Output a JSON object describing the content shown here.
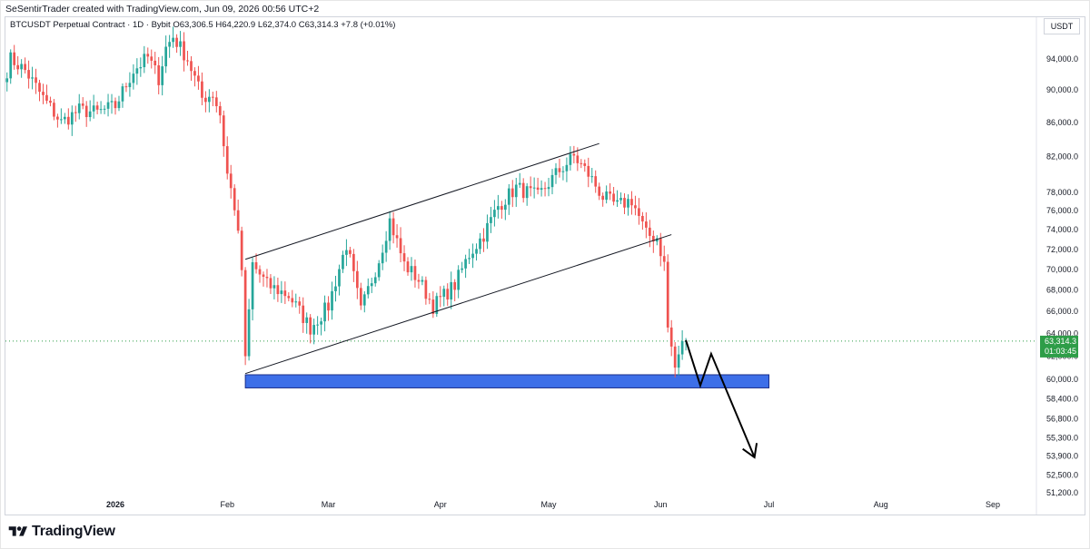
{
  "credit": "SeSentirTrader created with TradingView.com, Jun 09, 2026 00:56 UTC+2",
  "legend": {
    "symbol": "BTCUSDT Perpetual Contract · 1D · Bybit",
    "open": "O63,306.5",
    "high": "H64,220.9",
    "low": "L62,374.0",
    "close": "C63,314.3",
    "change": "+7.8 (+0.01%)"
  },
  "currency": "USDT",
  "last_price": {
    "label": "63,314.3",
    "countdown": "01:03:45",
    "value": 63314.3
  },
  "brand": "TradingView",
  "colors": {
    "up": "#26a69a",
    "down": "#ef5350",
    "zone": "#3d6fe8",
    "price_label": "#2e9d48",
    "projection": "#000000"
  },
  "chart_data": {
    "type": "candlestick",
    "symbol": "BTCUSDT Perpetual Contract",
    "timeframe": "1D",
    "y_scale": "log",
    "ylim": [
      51000,
      99000
    ],
    "x_ticks": [
      {
        "label": "2026",
        "date": "2026-01-01",
        "bold": true
      },
      {
        "label": "Feb",
        "date": "2026-02-01"
      },
      {
        "label": "Mar",
        "date": "2026-03-01"
      },
      {
        "label": "Apr",
        "date": "2026-04-01"
      },
      {
        "label": "May",
        "date": "2026-05-01"
      },
      {
        "label": "Jun",
        "date": "2026-06-01"
      },
      {
        "label": "Jul",
        "date": "2026-07-01"
      },
      {
        "label": "Aug",
        "date": "2026-08-01"
      },
      {
        "label": "Sep",
        "date": "2026-09-01"
      }
    ],
    "y_ticks": [
      {
        "label": "94,000.0",
        "value": 94000
      },
      {
        "label": "90,000.0",
        "value": 90000
      },
      {
        "label": "86,000.0",
        "value": 86000
      },
      {
        "label": "82,000.0",
        "value": 82000
      },
      {
        "label": "78,000.0",
        "value": 78000
      },
      {
        "label": "76,000.0",
        "value": 76000
      },
      {
        "label": "74,000.0",
        "value": 74000
      },
      {
        "label": "72,000.0",
        "value": 72000
      },
      {
        "label": "70,000.0",
        "value": 70000
      },
      {
        "label": "68,000.0",
        "value": 68000
      },
      {
        "label": "66,000.0",
        "value": 66000
      },
      {
        "label": "64,000.0",
        "value": 64000
      },
      {
        "label": "62,000.0",
        "value": 62000
      },
      {
        "label": "60,000.0",
        "value": 60000
      },
      {
        "label": "58,400.0",
        "value": 58400
      },
      {
        "label": "56,800.0",
        "value": 56800
      },
      {
        "label": "55,300.0",
        "value": 55300
      },
      {
        "label": "53,900.0",
        "value": 53900
      },
      {
        "label": "52,500.0",
        "value": 52500
      },
      {
        "label": "51,200.0",
        "value": 51200
      }
    ],
    "anchors": [
      {
        "date": "2025-12-01",
        "close": 91000
      },
      {
        "date": "2025-12-03",
        "close": 94000
      },
      {
        "date": "2025-12-07",
        "close": 92500
      },
      {
        "date": "2025-12-12",
        "close": 89000
      },
      {
        "date": "2025-12-17",
        "close": 86000
      },
      {
        "date": "2025-12-22",
        "close": 87500
      },
      {
        "date": "2025-12-27",
        "close": 87200
      },
      {
        "date": "2026-01-01",
        "close": 88000
      },
      {
        "date": "2026-01-06",
        "close": 92500
      },
      {
        "date": "2026-01-10",
        "close": 94200
      },
      {
        "date": "2026-01-13",
        "close": 91500
      },
      {
        "date": "2026-01-15",
        "close": 95500
      },
      {
        "date": "2026-01-17",
        "close": 97000
      },
      {
        "date": "2026-01-21",
        "close": 94000
      },
      {
        "date": "2026-01-25",
        "close": 89000
      },
      {
        "date": "2026-01-28",
        "close": 89500
      },
      {
        "date": "2026-01-30",
        "close": 87000
      },
      {
        "date": "2026-02-01",
        "close": 80000
      },
      {
        "date": "2026-02-03",
        "close": 76500
      },
      {
        "date": "2026-02-05",
        "close": 70000
      },
      {
        "date": "2026-02-06",
        "close": 61500
      },
      {
        "date": "2026-02-08",
        "close": 70500
      },
      {
        "date": "2026-02-12",
        "close": 68500
      },
      {
        "date": "2026-02-18",
        "close": 67500
      },
      {
        "date": "2026-02-24",
        "close": 64500
      },
      {
        "date": "2026-03-01",
        "close": 66500
      },
      {
        "date": "2026-03-06",
        "close": 72500
      },
      {
        "date": "2026-03-10",
        "close": 66000
      },
      {
        "date": "2026-03-15",
        "close": 71000
      },
      {
        "date": "2026-03-18",
        "close": 75000
      },
      {
        "date": "2026-03-22",
        "close": 70500
      },
      {
        "date": "2026-03-26",
        "close": 69000
      },
      {
        "date": "2026-03-30",
        "close": 66500
      },
      {
        "date": "2026-04-05",
        "close": 68500
      },
      {
        "date": "2026-04-09",
        "close": 71500
      },
      {
        "date": "2026-04-13",
        "close": 73500
      },
      {
        "date": "2026-04-17",
        "close": 76500
      },
      {
        "date": "2026-04-22",
        "close": 78500
      },
      {
        "date": "2026-04-28",
        "close": 77500
      },
      {
        "date": "2026-05-03",
        "close": 80000
      },
      {
        "date": "2026-05-08",
        "close": 82000
      },
      {
        "date": "2026-05-12",
        "close": 80000
      },
      {
        "date": "2026-05-16",
        "close": 77500
      },
      {
        "date": "2026-05-20",
        "close": 76500
      },
      {
        "date": "2026-05-24",
        "close": 77200
      },
      {
        "date": "2026-05-28",
        "close": 73500
      },
      {
        "date": "2026-05-31",
        "close": 73200
      },
      {
        "date": "2026-06-02",
        "close": 70500
      },
      {
        "date": "2026-06-03",
        "close": 64500
      },
      {
        "date": "2026-06-05",
        "close": 61000
      },
      {
        "date": "2026-06-06",
        "close": 61800
      },
      {
        "date": "2026-06-07",
        "close": 63306.5
      },
      {
        "date": "2026-06-08",
        "close": 63314.3
      }
    ],
    "channel": {
      "upper": [
        {
          "date": "2026-02-06",
          "value": 71000
        },
        {
          "date": "2026-05-15",
          "value": 83500
        }
      ],
      "lower": [
        {
          "date": "2026-02-06",
          "value": 60500
        },
        {
          "date": "2026-06-04",
          "value": 73500
        }
      ]
    },
    "support_zone": {
      "from": "2026-02-06",
      "to": "2026-07-01",
      "low": 59300,
      "high": 60400
    },
    "projection": [
      {
        "date": "2026-06-08",
        "value": 63400
      },
      {
        "date": "2026-06-12",
        "value": 59500
      },
      {
        "date": "2026-06-15",
        "value": 62200
      },
      {
        "date": "2026-06-27",
        "value": 53800
      }
    ]
  }
}
